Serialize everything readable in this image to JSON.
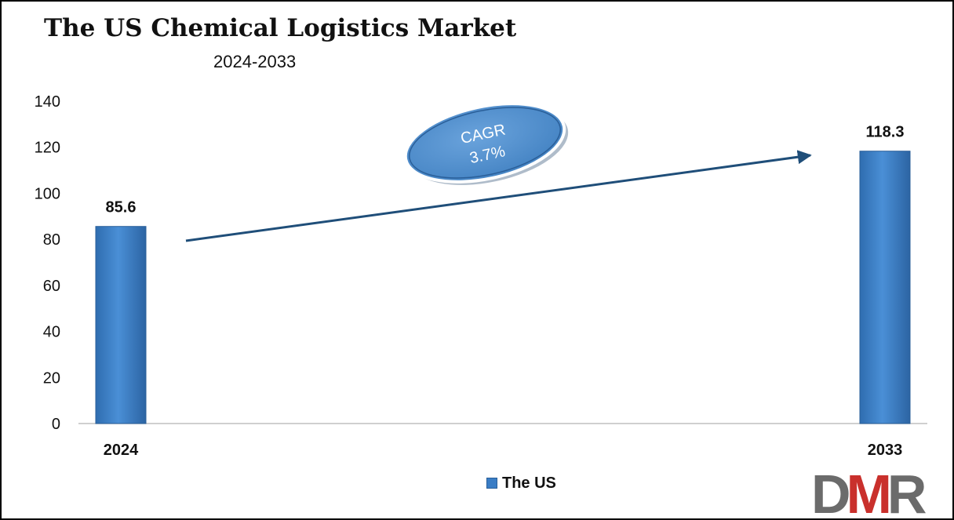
{
  "chart_data": {
    "type": "bar",
    "title": "The US Chemical Logistics Market",
    "subtitle": "2024-2033",
    "categories": [
      "2024",
      "2033"
    ],
    "series": [
      {
        "name": "The US",
        "values": [
          85.6,
          118.3
        ]
      }
    ],
    "data_labels": [
      "85.6",
      "118.3"
    ],
    "y_ticks": [
      "0",
      "20",
      "40",
      "60",
      "80",
      "100",
      "120",
      "140"
    ],
    "y_tick_values": [
      0,
      20,
      40,
      60,
      80,
      100,
      120,
      140
    ],
    "ylim": [
      0,
      140
    ],
    "xlabel": "",
    "ylabel": "",
    "grid": false,
    "legend_position": "bottom",
    "annotation": {
      "line1": "CAGR",
      "line2": "3.7%"
    },
    "colors": {
      "bar": "#3A7DC5",
      "arrow": "#1F4E79",
      "ellipse": "#4F8FCF"
    }
  },
  "logo": {
    "text": "DMR",
    "colors": {
      "d": "#6B6B6B",
      "m": "#C9302C",
      "r": "#6B6B6B"
    }
  }
}
